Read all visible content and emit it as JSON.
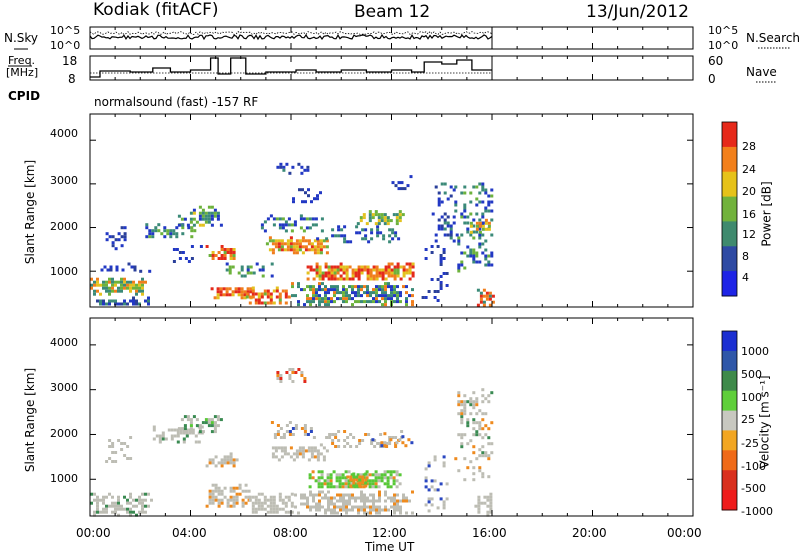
{
  "header": {
    "station": "Kodiak (fitACF)",
    "beam": "Beam 12",
    "date": "13/Jun/2012"
  },
  "noise_panel": {
    "left_label": "N.Sky",
    "right_label": "N.Search",
    "left_ticks": [
      "10^5",
      "10^0"
    ],
    "right_ticks": [
      "10^5",
      "10^0"
    ]
  },
  "freq_panel": {
    "left_label_1": "Freq.",
    "left_label_2": "[MHz]",
    "right_label": "Nave",
    "left_ticks": [
      "18",
      "8"
    ],
    "right_ticks": [
      "60",
      "0"
    ]
  },
  "cpid_panel": {
    "label": "CPID",
    "text": "normalsound (fast) -157 RF"
  },
  "chart_data": [
    {
      "type": "heatmap",
      "name": "power",
      "ylabel": "Slant Range [km]",
      "y_ticks": [
        "1000",
        "2000",
        "3000",
        "4000"
      ],
      "ylim": [
        180,
        4600
      ],
      "xlim": [
        0,
        24
      ],
      "data_end_hour": 16,
      "colorbar_label": "Power [dB]",
      "colorbar_ticks": [
        "4",
        "8",
        "12",
        "16",
        "20",
        "24",
        "28"
      ],
      "colorbar_colors": [
        "#1e24e6",
        "#2e4aa3",
        "#3f8a6e",
        "#71b23c",
        "#e6c21a",
        "#f2801b",
        "#e6291a"
      ],
      "colors": {
        "blue": "#2238c4",
        "navy": "#2a3f9a",
        "teal": "#3b8a78",
        "green": "#6db23c",
        "yellow": "#e3c21f",
        "orange": "#f07e1d",
        "red": "#e42a1b"
      }
    },
    {
      "type": "heatmap",
      "name": "velocity",
      "ylabel": "Slant Range [km]",
      "y_ticks": [
        "1000",
        "2000",
        "3000",
        "4000"
      ],
      "ylim": [
        180,
        4600
      ],
      "xlim": [
        0,
        24
      ],
      "data_end_hour": 16,
      "colorbar_label": "Velocity [m s⁻¹]",
      "colorbar_ticks": [
        "1000",
        "500",
        "100",
        "25",
        "-25",
        "-100",
        "-500",
        "-1000"
      ],
      "colorbar_colors": [
        "#1b2fd1",
        "#2f57a8",
        "#3e8a4a",
        "#5fcf3a",
        "#c8c8c0",
        "#f2a622",
        "#ef6a18",
        "#d9301e",
        "#ee1b1b"
      ],
      "colors": {
        "grey": "#bdbdb4",
        "green": "#58c837",
        "dkgreen": "#3a8a52",
        "orange": "#ee8a1e",
        "blue": "#2a47c0",
        "red": "#e22a1b"
      }
    }
  ],
  "x_axis": {
    "ticks": [
      "00:00",
      "04:00",
      "08:00",
      "12:00",
      "16:00",
      "20:00",
      "00:00"
    ],
    "label": "Time UT"
  }
}
